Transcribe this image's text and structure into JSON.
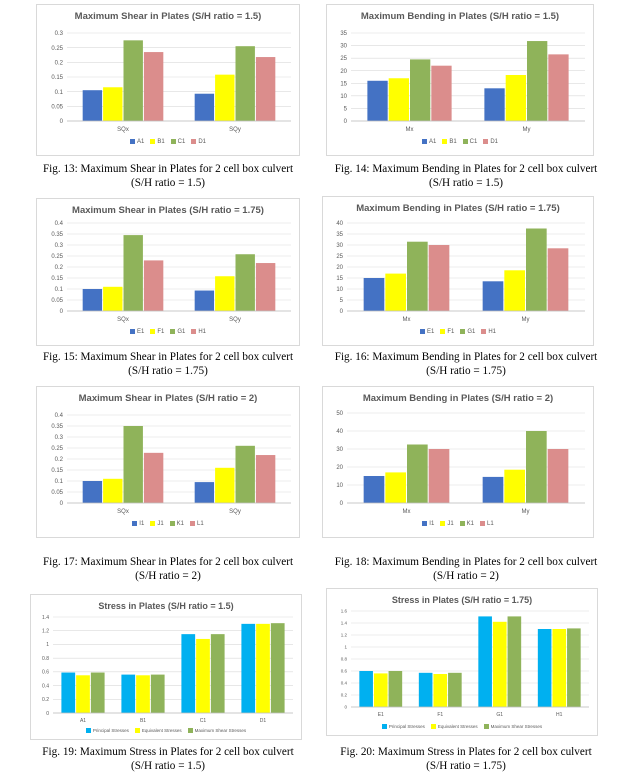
{
  "figures": [
    {
      "caption_line1": "Fig. 13: Maximum Shear in Plates for 2 cell box culvert",
      "caption_line2": "(S/H ratio = 1.5)",
      "chart_data": {
        "type": "bar",
        "title": "Maximum Shear in Plates (S/H ratio = 1.5)",
        "categories": [
          "SQx",
          "SQy"
        ],
        "series": [
          {
            "name": "A1",
            "values": [
              0.105,
              0.093
            ],
            "color": "#4472c4"
          },
          {
            "name": "B1",
            "values": [
              0.115,
              0.158
            ],
            "color": "#ffff00"
          },
          {
            "name": "C1",
            "values": [
              0.275,
              0.255
            ],
            "color": "#8fb35a"
          },
          {
            "name": "D1",
            "values": [
              0.235,
              0.218
            ],
            "color": "#db8d8c"
          }
        ],
        "ylim": [
          0,
          0.3
        ],
        "yticks": [
          "0",
          "0.05",
          "0.1",
          "0.15",
          "0.2",
          "0.25",
          "0.3"
        ],
        "legend_position": "bottom",
        "grid": true
      }
    },
    {
      "caption_line1": "Fig. 14: Maximum Bending in Plates for 2 cell box culvert",
      "caption_line2": "(S/H ratio = 1.5)",
      "chart_data": {
        "type": "bar",
        "title": "Maximum Bending in Plates (S/H ratio = 1.5)",
        "categories": [
          "Mx",
          "My"
        ],
        "series": [
          {
            "name": "A1",
            "values": [
              16,
              13
            ],
            "color": "#4472c4"
          },
          {
            "name": "B1",
            "values": [
              17,
              18.3
            ],
            "color": "#ffff00"
          },
          {
            "name": "C1",
            "values": [
              24.5,
              31.8
            ],
            "color": "#8fb35a"
          },
          {
            "name": "D1",
            "values": [
              22,
              26.5
            ],
            "color": "#db8d8c"
          }
        ],
        "ylim": [
          0,
          35
        ],
        "yticks": [
          "0",
          "5",
          "10",
          "15",
          "20",
          "25",
          "30",
          "35"
        ],
        "legend_position": "bottom",
        "grid": true
      }
    },
    {
      "caption_line1": "Fig. 15: Maximum Shear in Plates for 2 cell box culvert",
      "caption_line2": "(S/H ratio = 1.75)",
      "chart_data": {
        "type": "bar",
        "title": "Maximum Shear in Plates (S/H ratio = 1.75)",
        "categories": [
          "SQx",
          "SQy"
        ],
        "series": [
          {
            "name": "E1",
            "values": [
              0.1,
              0.093
            ],
            "color": "#4472c4"
          },
          {
            "name": "F1",
            "values": [
              0.11,
              0.158
            ],
            "color": "#ffff00"
          },
          {
            "name": "G1",
            "values": [
              0.345,
              0.258
            ],
            "color": "#8fb35a"
          },
          {
            "name": "H1",
            "values": [
              0.23,
              0.218
            ],
            "color": "#db8d8c"
          }
        ],
        "ylim": [
          0,
          0.4
        ],
        "yticks": [
          "0",
          "0.05",
          "0.1",
          "0.15",
          "0.2",
          "0.25",
          "0.3",
          "0.35",
          "0.4"
        ],
        "legend_position": "bottom",
        "grid": true
      }
    },
    {
      "caption_line1": "Fig. 16: Maximum Bending in Plates for 2 cell box culvert",
      "caption_line2": "(S/H ratio = 1.75)",
      "chart_data": {
        "type": "bar",
        "title": "Maximum Bending in Plates (S/H ratio = 1.75)",
        "categories": [
          "Mx",
          "My"
        ],
        "series": [
          {
            "name": "E1",
            "values": [
              15,
              13.5
            ],
            "color": "#4472c4"
          },
          {
            "name": "F1",
            "values": [
              17,
              18.5
            ],
            "color": "#ffff00"
          },
          {
            "name": "G1",
            "values": [
              31.5,
              37.5
            ],
            "color": "#8fb35a"
          },
          {
            "name": "H1",
            "values": [
              30,
              28.5
            ],
            "color": "#db8d8c"
          }
        ],
        "ylim": [
          0,
          40
        ],
        "yticks": [
          "0",
          "5",
          "10",
          "15",
          "20",
          "25",
          "30",
          "35",
          "40"
        ],
        "legend_position": "bottom",
        "grid": true
      }
    },
    {
      "caption_line1": "Fig. 17: Maximum Shear in Plates for 2 cell box culvert",
      "caption_line2": "(S/H ratio = 2)",
      "chart_data": {
        "type": "bar",
        "title": "Maximum Shear in Plates (S/H ratio = 2)",
        "categories": [
          "SQx",
          "SQy"
        ],
        "series": [
          {
            "name": "I1",
            "values": [
              0.1,
              0.095
            ],
            "color": "#4472c4"
          },
          {
            "name": "J1",
            "values": [
              0.11,
              0.16
            ],
            "color": "#ffff00"
          },
          {
            "name": "K1",
            "values": [
              0.35,
              0.26
            ],
            "color": "#8fb35a"
          },
          {
            "name": "L1",
            "values": [
              0.228,
              0.218
            ],
            "color": "#db8d8c"
          }
        ],
        "ylim": [
          0,
          0.4
        ],
        "yticks": [
          "0",
          "0.05",
          "0.1",
          "0.15",
          "0.2",
          "0.25",
          "0.3",
          "0.35",
          "0.4"
        ],
        "legend_position": "bottom",
        "grid": true
      }
    },
    {
      "caption_line1": "Fig. 18: Maximum Bending in Plates for 2 cell box culvert",
      "caption_line2": "(S/H ratio = 2)",
      "chart_data": {
        "type": "bar",
        "title": "Maximum Bending in Plates (S/H ratio = 2)",
        "categories": [
          "Mx",
          "My"
        ],
        "series": [
          {
            "name": "I1",
            "values": [
              15,
              14.5
            ],
            "color": "#4472c4"
          },
          {
            "name": "J1",
            "values": [
              17,
              18.5
            ],
            "color": "#ffff00"
          },
          {
            "name": "K1",
            "values": [
              32.5,
              40
            ],
            "color": "#8fb35a"
          },
          {
            "name": "L1",
            "values": [
              30,
              30
            ],
            "color": "#db8d8c"
          }
        ],
        "ylim": [
          0,
          50
        ],
        "yticks": [
          "0",
          "10",
          "20",
          "30",
          "40",
          "50"
        ],
        "legend_position": "bottom",
        "grid": true
      }
    },
    {
      "caption_line1": "Fig. 19: Maximum Stress in Plates for 2 cell box culvert",
      "caption_line2": "(S/H ratio = 1.5)",
      "chart_data": {
        "type": "bar",
        "title": "Stress in Plates (S/H ratio = 1.5)",
        "categories": [
          "A1",
          "B1",
          "C1",
          "D1"
        ],
        "series": [
          {
            "name": "Principal Stresses",
            "values": [
              0.59,
              0.56,
              1.15,
              1.3
            ],
            "color": "#00b0f0"
          },
          {
            "name": "Equivalent Stresses",
            "values": [
              0.55,
              0.55,
              1.08,
              1.3
            ],
            "color": "#ffff00"
          },
          {
            "name": "Maximum Shear Stresses",
            "values": [
              0.59,
              0.56,
              1.15,
              1.31
            ],
            "color": "#8fb35a"
          }
        ],
        "ylim": [
          0,
          1.4
        ],
        "yticks": [
          "0",
          "0.2",
          "0.4",
          "0.6",
          "0.8",
          "1",
          "1.2",
          "1.4"
        ],
        "legend_position": "bottom",
        "grid": true
      }
    },
    {
      "caption_line1": "Fig. 20: Maximum Stress in Plates for 2 cell box culvert",
      "caption_line2": "(S/H ratio = 1.75)",
      "chart_data": {
        "type": "bar",
        "title": "Stress in Plates (S/H ratio = 1.75)",
        "categories": [
          "E1",
          "F1",
          "G1",
          "H1"
        ],
        "series": [
          {
            "name": "Principal Stresses",
            "values": [
              0.6,
              0.57,
              1.51,
              1.3
            ],
            "color": "#00b0f0"
          },
          {
            "name": "Equivalent Stresses",
            "values": [
              0.56,
              0.55,
              1.42,
              1.3
            ],
            "color": "#ffff00"
          },
          {
            "name": "Maximum Shear Stresses",
            "values": [
              0.6,
              0.57,
              1.51,
              1.31
            ],
            "color": "#8fb35a"
          }
        ],
        "ylim": [
          0,
          1.6
        ],
        "yticks": [
          "0",
          "0.2",
          "0.4",
          "0.6",
          "0.8",
          "1",
          "1.2",
          "1.4",
          "1.6"
        ],
        "legend_position": "bottom",
        "grid": true
      }
    }
  ]
}
